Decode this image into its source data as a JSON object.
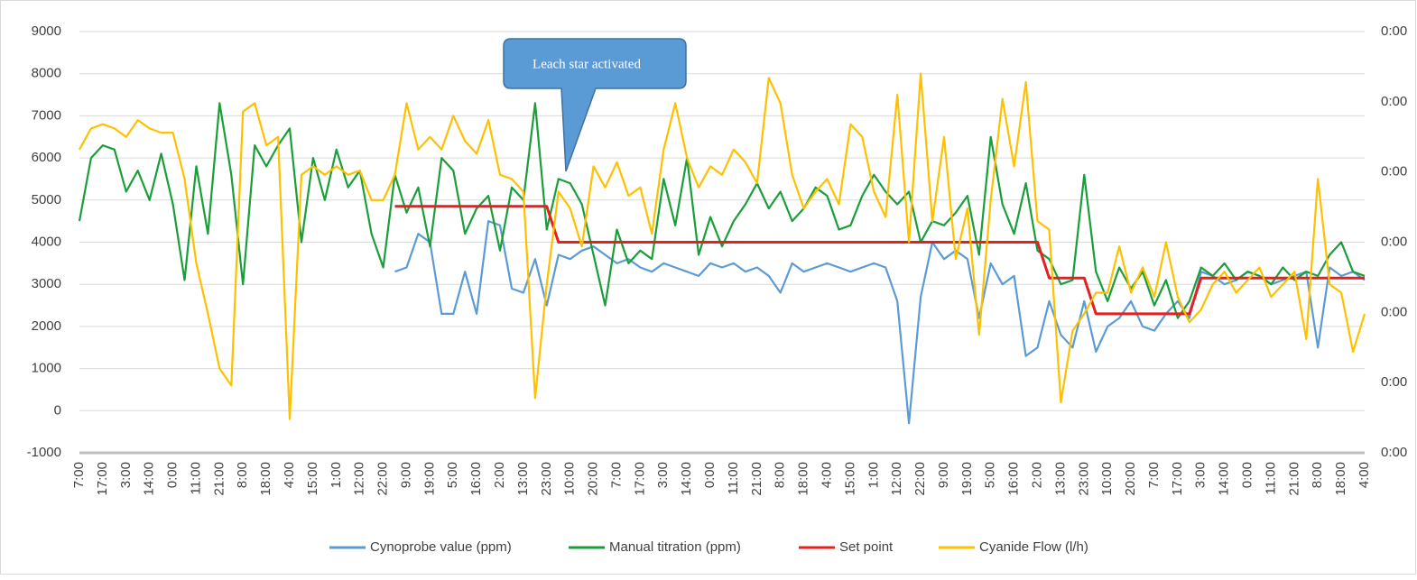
{
  "chart_data": {
    "type": "line",
    "annotation": "Leach star activated",
    "categories": [
      "7:00",
      null,
      "17:00",
      null,
      "3:00",
      null,
      "14:00",
      null,
      "0:00",
      null,
      "11:00",
      null,
      "21:00",
      null,
      "8:00",
      null,
      "18:00",
      null,
      "4:00",
      null,
      "15:00",
      null,
      "1:00",
      null,
      "12:00",
      null,
      "22:00",
      null,
      "9:00",
      null,
      "19:00",
      null,
      "5:00",
      null,
      "16:00",
      null,
      "2:00",
      null,
      "13:00",
      null,
      "23:00",
      null,
      "10:00",
      null,
      "20:00",
      null,
      "7:00",
      null,
      "17:00",
      null,
      "3:00",
      null,
      "14:00",
      null,
      "0:00",
      null,
      "11:00",
      null,
      "21:00",
      null,
      "8:00",
      null,
      "18:00",
      null,
      "4:00",
      null,
      "15:00",
      null,
      "1:00",
      null,
      "12:00",
      null,
      "22:00",
      null,
      "9:00",
      null,
      "19:00",
      null,
      "5:00",
      null,
      "16:00",
      null,
      "2:00",
      null,
      "13:00",
      null,
      "23:00",
      null,
      "10:00",
      null,
      "20:00",
      null,
      "7:00",
      null,
      "17:00",
      null,
      "3:00",
      null,
      "14:00",
      null,
      "0:00",
      null,
      "11:00",
      null,
      "21:00",
      null,
      "8:00",
      null,
      "18:00",
      null,
      "4:00"
    ],
    "series": [
      {
        "name": "Cynoprobe value (ppm)",
        "color": "#5b9bd5",
        "values": [
          null,
          null,
          null,
          null,
          null,
          null,
          null,
          null,
          null,
          null,
          null,
          null,
          null,
          null,
          null,
          null,
          null,
          null,
          null,
          null,
          null,
          null,
          null,
          null,
          null,
          null,
          null,
          3300,
          3400,
          4200,
          4000,
          2300,
          2300,
          3300,
          2300,
          4500,
          4400,
          2900,
          2800,
          3600,
          2500,
          3700,
          3600,
          3800,
          3900,
          3700,
          3500,
          3600,
          3400,
          3300,
          3500,
          3400,
          3300,
          3200,
          3500,
          3400,
          3500,
          3300,
          3400,
          3200,
          2800,
          3500,
          3300,
          3400,
          3500,
          3400,
          3300,
          3400,
          3500,
          3400,
          2600,
          -300,
          2700,
          4000,
          3600,
          3800,
          3600,
          2200,
          3500,
          3000,
          3200,
          1300,
          1500,
          2600,
          1800,
          1500,
          2600,
          1400,
          2000,
          2200,
          2600,
          2000,
          1900,
          2300,
          2600,
          2200,
          3300,
          3200,
          3000,
          3100,
          3300,
          3200,
          3000,
          3100,
          3200,
          3300,
          1500,
          3400,
          3200,
          3300,
          3100
        ]
      },
      {
        "name": "Manual titration (ppm)",
        "color": "#1a9e3a",
        "values": [
          4500,
          6000,
          6300,
          6200,
          5200,
          5700,
          5000,
          6100,
          4900,
          3100,
          5800,
          4200,
          7300,
          5600,
          3000,
          6300,
          5800,
          6300,
          6700,
          4000,
          6000,
          5000,
          6200,
          5300,
          5700,
          4200,
          3400,
          5600,
          4700,
          5300,
          3900,
          6000,
          5700,
          4200,
          4800,
          5100,
          3800,
          5300,
          5000,
          7300,
          4300,
          5500,
          5400,
          4900,
          3700,
          2500,
          4300,
          3500,
          3800,
          3600,
          5500,
          4400,
          6000,
          3700,
          4600,
          3900,
          4500,
          4900,
          5400,
          4800,
          5200,
          4500,
          4800,
          5300,
          5100,
          4300,
          4400,
          5100,
          5600,
          5200,
          4900,
          5200,
          4000,
          4500,
          4400,
          4700,
          5100,
          3700,
          6500,
          4900,
          4200,
          5400,
          3800,
          3600,
          3000,
          3100,
          5600,
          3300,
          2600,
          3400,
          2900,
          3300,
          2500,
          3100,
          2200,
          2600,
          3400,
          3200,
          3500,
          3100,
          3300,
          3200,
          3000,
          3400,
          3100,
          3300,
          3200,
          3700,
          4000,
          3300,
          3200
        ]
      },
      {
        "name": "Set point",
        "color": "#e5201e",
        "values": [
          null,
          null,
          null,
          null,
          null,
          null,
          null,
          null,
          null,
          null,
          null,
          null,
          null,
          null,
          null,
          null,
          null,
          null,
          null,
          null,
          null,
          null,
          null,
          null,
          null,
          null,
          null,
          4850,
          4850,
          4850,
          4850,
          4850,
          4850,
          4850,
          4850,
          4850,
          4850,
          4850,
          4850,
          4850,
          4850,
          4000,
          4000,
          4000,
          4000,
          4000,
          4000,
          4000,
          4000,
          4000,
          4000,
          4000,
          4000,
          4000,
          4000,
          4000,
          4000,
          4000,
          4000,
          4000,
          4000,
          4000,
          4000,
          4000,
          4000,
          4000,
          4000,
          4000,
          4000,
          4000,
          4000,
          4000,
          4000,
          4000,
          4000,
          4000,
          4000,
          4000,
          4000,
          4000,
          4000,
          4000,
          4000,
          3150,
          3150,
          3150,
          3150,
          2300,
          2300,
          2300,
          2300,
          2300,
          2300,
          2300,
          2300,
          2300,
          3150,
          3150,
          3150,
          3150,
          3150,
          3150,
          3150,
          3150,
          3150,
          3150,
          3150,
          3150,
          3150,
          3150,
          3150
        ]
      },
      {
        "name": "Cyanide Flow (l/h)",
        "color": "#ffc000",
        "values": [
          6200,
          6700,
          6800,
          6700,
          6500,
          6900,
          6700,
          6600,
          6600,
          5500,
          3500,
          2300,
          1000,
          600,
          7100,
          7300,
          6300,
          6500,
          -200,
          5600,
          5800,
          5600,
          5800,
          5600,
          5700,
          5000,
          5000,
          5600,
          7300,
          6200,
          6500,
          6200,
          7000,
          6400,
          6100,
          6900,
          5600,
          5500,
          5200,
          300,
          3000,
          5200,
          4800,
          3900,
          5800,
          5300,
          5900,
          5100,
          5300,
          4200,
          6200,
          7300,
          6000,
          5300,
          5800,
          5600,
          6200,
          5900,
          5400,
          7900,
          7300,
          5600,
          4800,
          5200,
          5500,
          4900,
          6800,
          6500,
          5200,
          4600,
          7500,
          4000,
          8000,
          4500,
          6500,
          3600,
          4800,
          1800,
          5000,
          7400,
          5800,
          7800,
          4500,
          4300,
          200,
          1900,
          2300,
          2800,
          2800,
          3900,
          2800,
          3400,
          2700,
          4000,
          2700,
          2100,
          2400,
          3000,
          3300,
          2800,
          3100,
          3400,
          2700,
          3000,
          3300,
          1700,
          5500,
          3000,
          2800,
          1400,
          2300
        ]
      }
    ],
    "ylim": [
      -1000,
      9000
    ],
    "yticks": [
      -1000,
      0,
      1000,
      2000,
      3000,
      4000,
      5000,
      6000,
      7000,
      8000,
      9000
    ],
    "y2lim": [
      0,
      6
    ],
    "y2ticks": [
      {
        "value": 0,
        "label": "0:00"
      },
      {
        "value": 1,
        "label": "0:00"
      },
      {
        "value": 2,
        "label": "0:00"
      },
      {
        "value": 3,
        "label": "0:00"
      },
      {
        "value": 4,
        "label": "0:00"
      },
      {
        "value": 5,
        "label": "0:00"
      },
      {
        "value": 6,
        "label": "0:00"
      }
    ],
    "grid": true,
    "legend": "bottom"
  }
}
